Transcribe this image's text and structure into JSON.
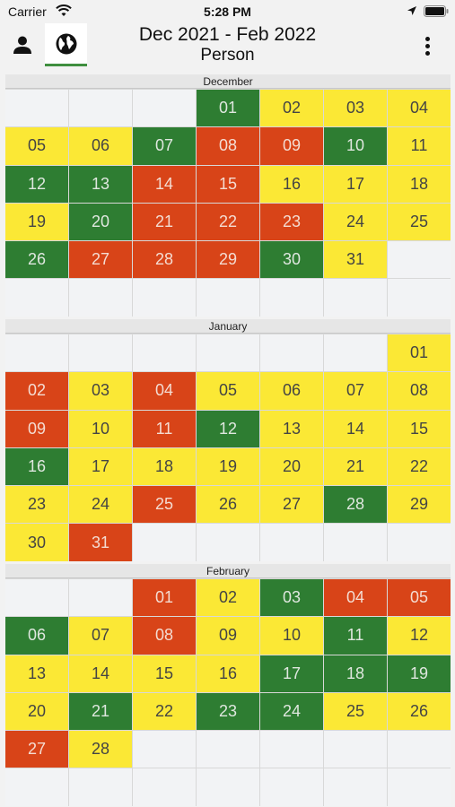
{
  "status_bar": {
    "carrier": "Carrier",
    "time": "5:28 PM"
  },
  "header": {
    "title": "Dec 2021 - Feb 2022",
    "subtitle": "Person"
  },
  "colors": {
    "yellow": "#fbe835",
    "green": "#2e7d32",
    "red": "#d84418",
    "empty": "#f2f3f5"
  },
  "months": [
    {
      "name": "December",
      "cells": [
        [
          "",
          "e"
        ],
        [
          "",
          "e"
        ],
        [
          "",
          "e"
        ],
        [
          "01",
          "g"
        ],
        [
          "02",
          "y"
        ],
        [
          "03",
          "y"
        ],
        [
          "04",
          "y"
        ],
        [
          "05",
          "y"
        ],
        [
          "06",
          "y"
        ],
        [
          "07",
          "g"
        ],
        [
          "08",
          "r"
        ],
        [
          "09",
          "r"
        ],
        [
          "10",
          "g"
        ],
        [
          "11",
          "y"
        ],
        [
          "12",
          "g"
        ],
        [
          "13",
          "g"
        ],
        [
          "14",
          "r"
        ],
        [
          "15",
          "r"
        ],
        [
          "16",
          "y"
        ],
        [
          "17",
          "y"
        ],
        [
          "18",
          "y"
        ],
        [
          "19",
          "y"
        ],
        [
          "20",
          "g"
        ],
        [
          "21",
          "r"
        ],
        [
          "22",
          "r"
        ],
        [
          "23",
          "r"
        ],
        [
          "24",
          "y"
        ],
        [
          "25",
          "y"
        ],
        [
          "26",
          "g"
        ],
        [
          "27",
          "r"
        ],
        [
          "28",
          "r"
        ],
        [
          "29",
          "r"
        ],
        [
          "30",
          "g"
        ],
        [
          "31",
          "y"
        ],
        [
          "",
          "e"
        ],
        [
          "",
          "e"
        ],
        [
          "",
          "e"
        ],
        [
          "",
          "e"
        ],
        [
          "",
          "e"
        ],
        [
          "",
          "e"
        ],
        [
          "",
          "e"
        ],
        [
          "",
          "e"
        ]
      ]
    },
    {
      "name": "January",
      "cells": [
        [
          "",
          "e"
        ],
        [
          "",
          "e"
        ],
        [
          "",
          "e"
        ],
        [
          "",
          "e"
        ],
        [
          "",
          "e"
        ],
        [
          "",
          "e"
        ],
        [
          "01",
          "y"
        ],
        [
          "02",
          "r"
        ],
        [
          "03",
          "y"
        ],
        [
          "04",
          "r"
        ],
        [
          "05",
          "y"
        ],
        [
          "06",
          "y"
        ],
        [
          "07",
          "y"
        ],
        [
          "08",
          "y"
        ],
        [
          "09",
          "r"
        ],
        [
          "10",
          "y"
        ],
        [
          "11",
          "r"
        ],
        [
          "12",
          "g"
        ],
        [
          "13",
          "y"
        ],
        [
          "14",
          "y"
        ],
        [
          "15",
          "y"
        ],
        [
          "16",
          "g"
        ],
        [
          "17",
          "y"
        ],
        [
          "18",
          "y"
        ],
        [
          "19",
          "y"
        ],
        [
          "20",
          "y"
        ],
        [
          "21",
          "y"
        ],
        [
          "22",
          "y"
        ],
        [
          "23",
          "y"
        ],
        [
          "24",
          "y"
        ],
        [
          "25",
          "r"
        ],
        [
          "26",
          "y"
        ],
        [
          "27",
          "y"
        ],
        [
          "28",
          "g"
        ],
        [
          "29",
          "y"
        ],
        [
          "30",
          "y"
        ],
        [
          "31",
          "r"
        ],
        [
          "",
          "e"
        ],
        [
          "",
          "e"
        ],
        [
          "",
          "e"
        ],
        [
          "",
          "e"
        ],
        [
          "",
          "e"
        ]
      ]
    },
    {
      "name": "February",
      "cells": [
        [
          "",
          "e"
        ],
        [
          "",
          "e"
        ],
        [
          "01",
          "r"
        ],
        [
          "02",
          "y"
        ],
        [
          "03",
          "g"
        ],
        [
          "04",
          "r"
        ],
        [
          "05",
          "r"
        ],
        [
          "06",
          "g"
        ],
        [
          "07",
          "y"
        ],
        [
          "08",
          "r"
        ],
        [
          "09",
          "y"
        ],
        [
          "10",
          "y"
        ],
        [
          "11",
          "g"
        ],
        [
          "12",
          "y"
        ],
        [
          "13",
          "y"
        ],
        [
          "14",
          "y"
        ],
        [
          "15",
          "y"
        ],
        [
          "16",
          "y"
        ],
        [
          "17",
          "g"
        ],
        [
          "18",
          "g"
        ],
        [
          "19",
          "g"
        ],
        [
          "20",
          "y"
        ],
        [
          "21",
          "g"
        ],
        [
          "22",
          "y"
        ],
        [
          "23",
          "g"
        ],
        [
          "24",
          "g"
        ],
        [
          "25",
          "y"
        ],
        [
          "26",
          "y"
        ],
        [
          "27",
          "r"
        ],
        [
          "28",
          "y"
        ],
        [
          "",
          "e"
        ],
        [
          "",
          "e"
        ],
        [
          "",
          "e"
        ],
        [
          "",
          "e"
        ],
        [
          "",
          "e"
        ],
        [
          "",
          "e"
        ],
        [
          "",
          "e"
        ],
        [
          "",
          "e"
        ],
        [
          "",
          "e"
        ],
        [
          "",
          "e"
        ],
        [
          "",
          "e"
        ],
        [
          "",
          "e"
        ]
      ]
    }
  ]
}
